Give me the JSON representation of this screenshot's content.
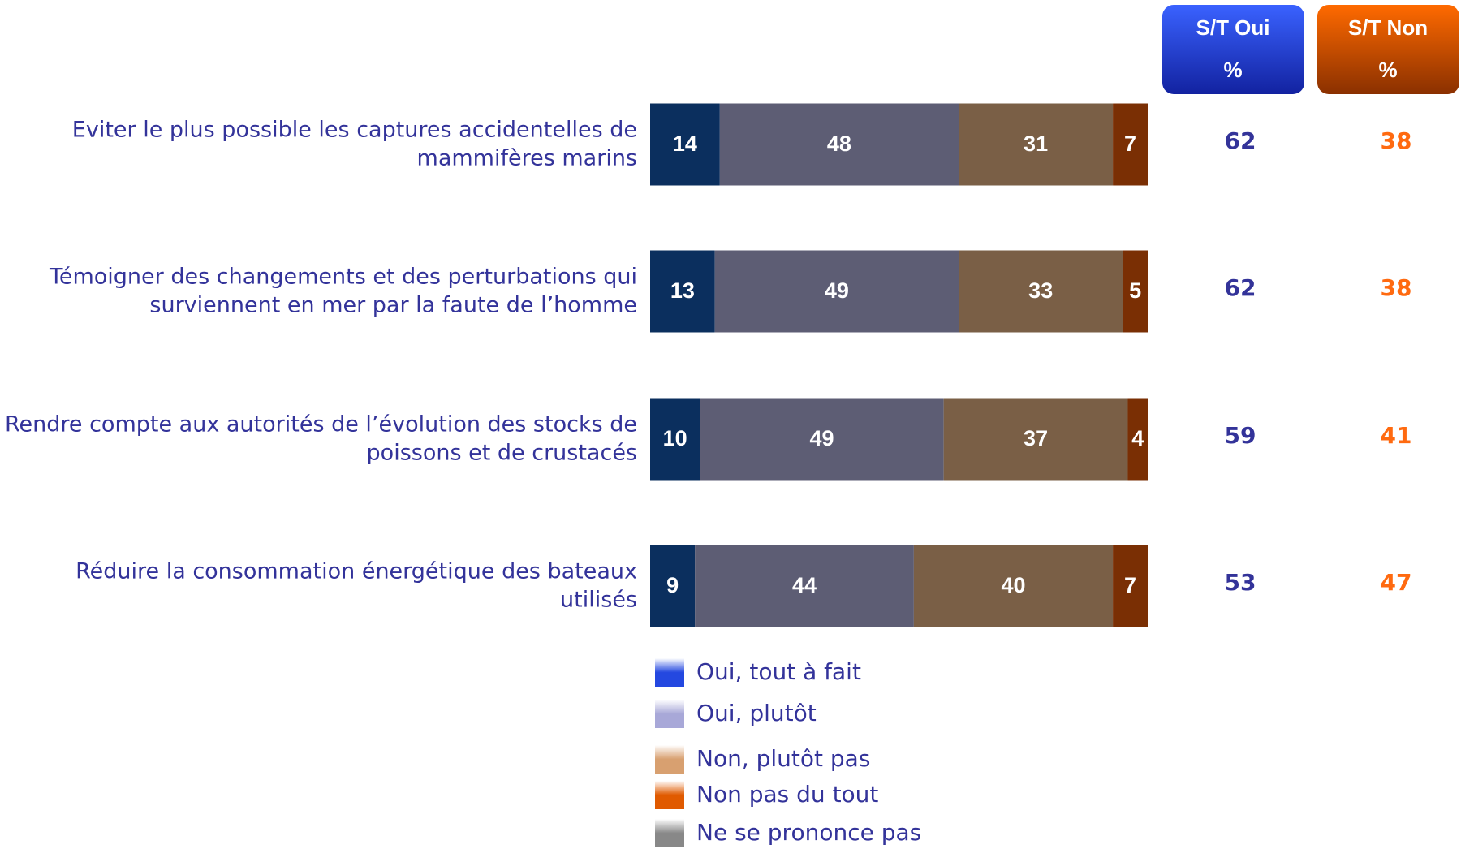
{
  "chart_data": {
    "type": "stacked-bar-horizontal",
    "categories": [
      [
        "Eviter le plus possible les captures accidentelles de",
        "mammifères marins"
      ],
      [
        "Témoigner des changements et des perturbations qui",
        "surviennent en mer par la faute de l’homme"
      ],
      [
        "Rendre compte aux autorités de l’évolution des stocks de",
        "poissons et de crustacés"
      ],
      [
        "Réduire la consommation énergétique des bateaux",
        "utilisés"
      ]
    ],
    "xlim": [
      0,
      100
    ],
    "series": [
      {
        "name": "Oui, tout à fait",
        "color": "#0b2f5e",
        "legend_color": "#2448e0",
        "values": [
          14,
          13,
          10,
          9
        ]
      },
      {
        "name": "Oui, plutôt",
        "color": "#5d5d74",
        "legend_color": "#a8a8d8",
        "values": [
          48,
          49,
          49,
          44
        ]
      },
      {
        "name": "Non, plutôt pas",
        "color": "#7a5f46",
        "legend_color": "#d8a070",
        "values": [
          31,
          33,
          37,
          40
        ]
      },
      {
        "name": "Non pas du tout",
        "color": "#7a2f04",
        "legend_color": "#e05a00",
        "values": [
          7,
          5,
          4,
          7
        ]
      },
      {
        "name": "Ne se prononce pas",
        "color": "#777777",
        "legend_color": "#888888",
        "values": [
          null,
          null,
          null,
          null
        ]
      }
    ],
    "summary": [
      {
        "header": "S/T Oui",
        "unit": "%",
        "color": "#333399",
        "box_color": "#2a45e8",
        "values": [
          62,
          62,
          59,
          53
        ]
      },
      {
        "header": "S/T Non",
        "unit": "%",
        "color": "#ff6a10",
        "box_color": "#e85a00",
        "values": [
          38,
          38,
          41,
          47
        ]
      }
    ]
  }
}
